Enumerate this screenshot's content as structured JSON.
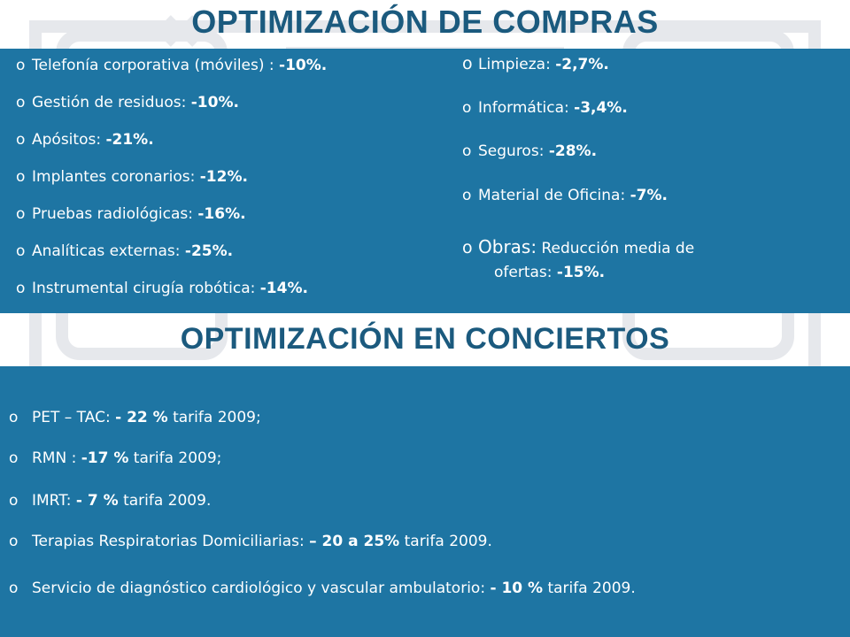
{
  "compras": {
    "title": "OPTIMIZACIÓN DE COMPRAS",
    "left_items": [
      {
        "label": "Telefonía corporativa (móviles) : ",
        "value": "-10%."
      },
      {
        "label": "Gestión de residuos: ",
        "value": "-10%."
      },
      {
        "label": "Apósitos: ",
        "value": "-21%."
      },
      {
        "label": "Implantes coronarios: ",
        "value": "-12%."
      },
      {
        "label": "Pruebas radiológicas: ",
        "value": "-16%."
      },
      {
        "label": "Analíticas externas: ",
        "value": "-25%."
      },
      {
        "label": "Instrumental cirugía robótica: ",
        "value": "-14%."
      }
    ],
    "right_items": [
      {
        "label": "Limpieza: ",
        "value": "-2,7%."
      },
      {
        "label": "Informática: ",
        "value": "-3,4%."
      },
      {
        "label": "Seguros: ",
        "value": "-28%."
      },
      {
        "label": "Material de Oficina: ",
        "value": "-7%."
      },
      {
        "label_lead": "Obras:",
        "label": " Reducción media de",
        "label_cont": "ofertas: ",
        "value": "-15%."
      }
    ]
  },
  "conciertos": {
    "title": "OPTIMIZACIÓN EN CONCIERTOS",
    "items": [
      {
        "label": "PET – TAC:  ",
        "value": "- 22 %",
        "suffix": " tarifa 2009;"
      },
      {
        "label": "RMN : ",
        "value": "-17 %",
        "suffix": " tarifa 2009;"
      },
      {
        "label": "IMRT: ",
        "value": "- 7 %",
        "suffix": " tarifa 2009."
      },
      {
        "label": "Terapias Respiratorias Domiciliarias: ",
        "value": "– 20 a 25%",
        "suffix": " tarifa 2009."
      },
      {
        "label": "Servicio de diagnóstico cardiológico y vascular ambulatorio: ",
        "value": "- 10 %",
        "suffix": " tarifa 2009."
      }
    ]
  },
  "bullet": "o",
  "colors": {
    "title": "#1b5a7e",
    "panel": "#1e75a3",
    "text": "#ffffff"
  }
}
